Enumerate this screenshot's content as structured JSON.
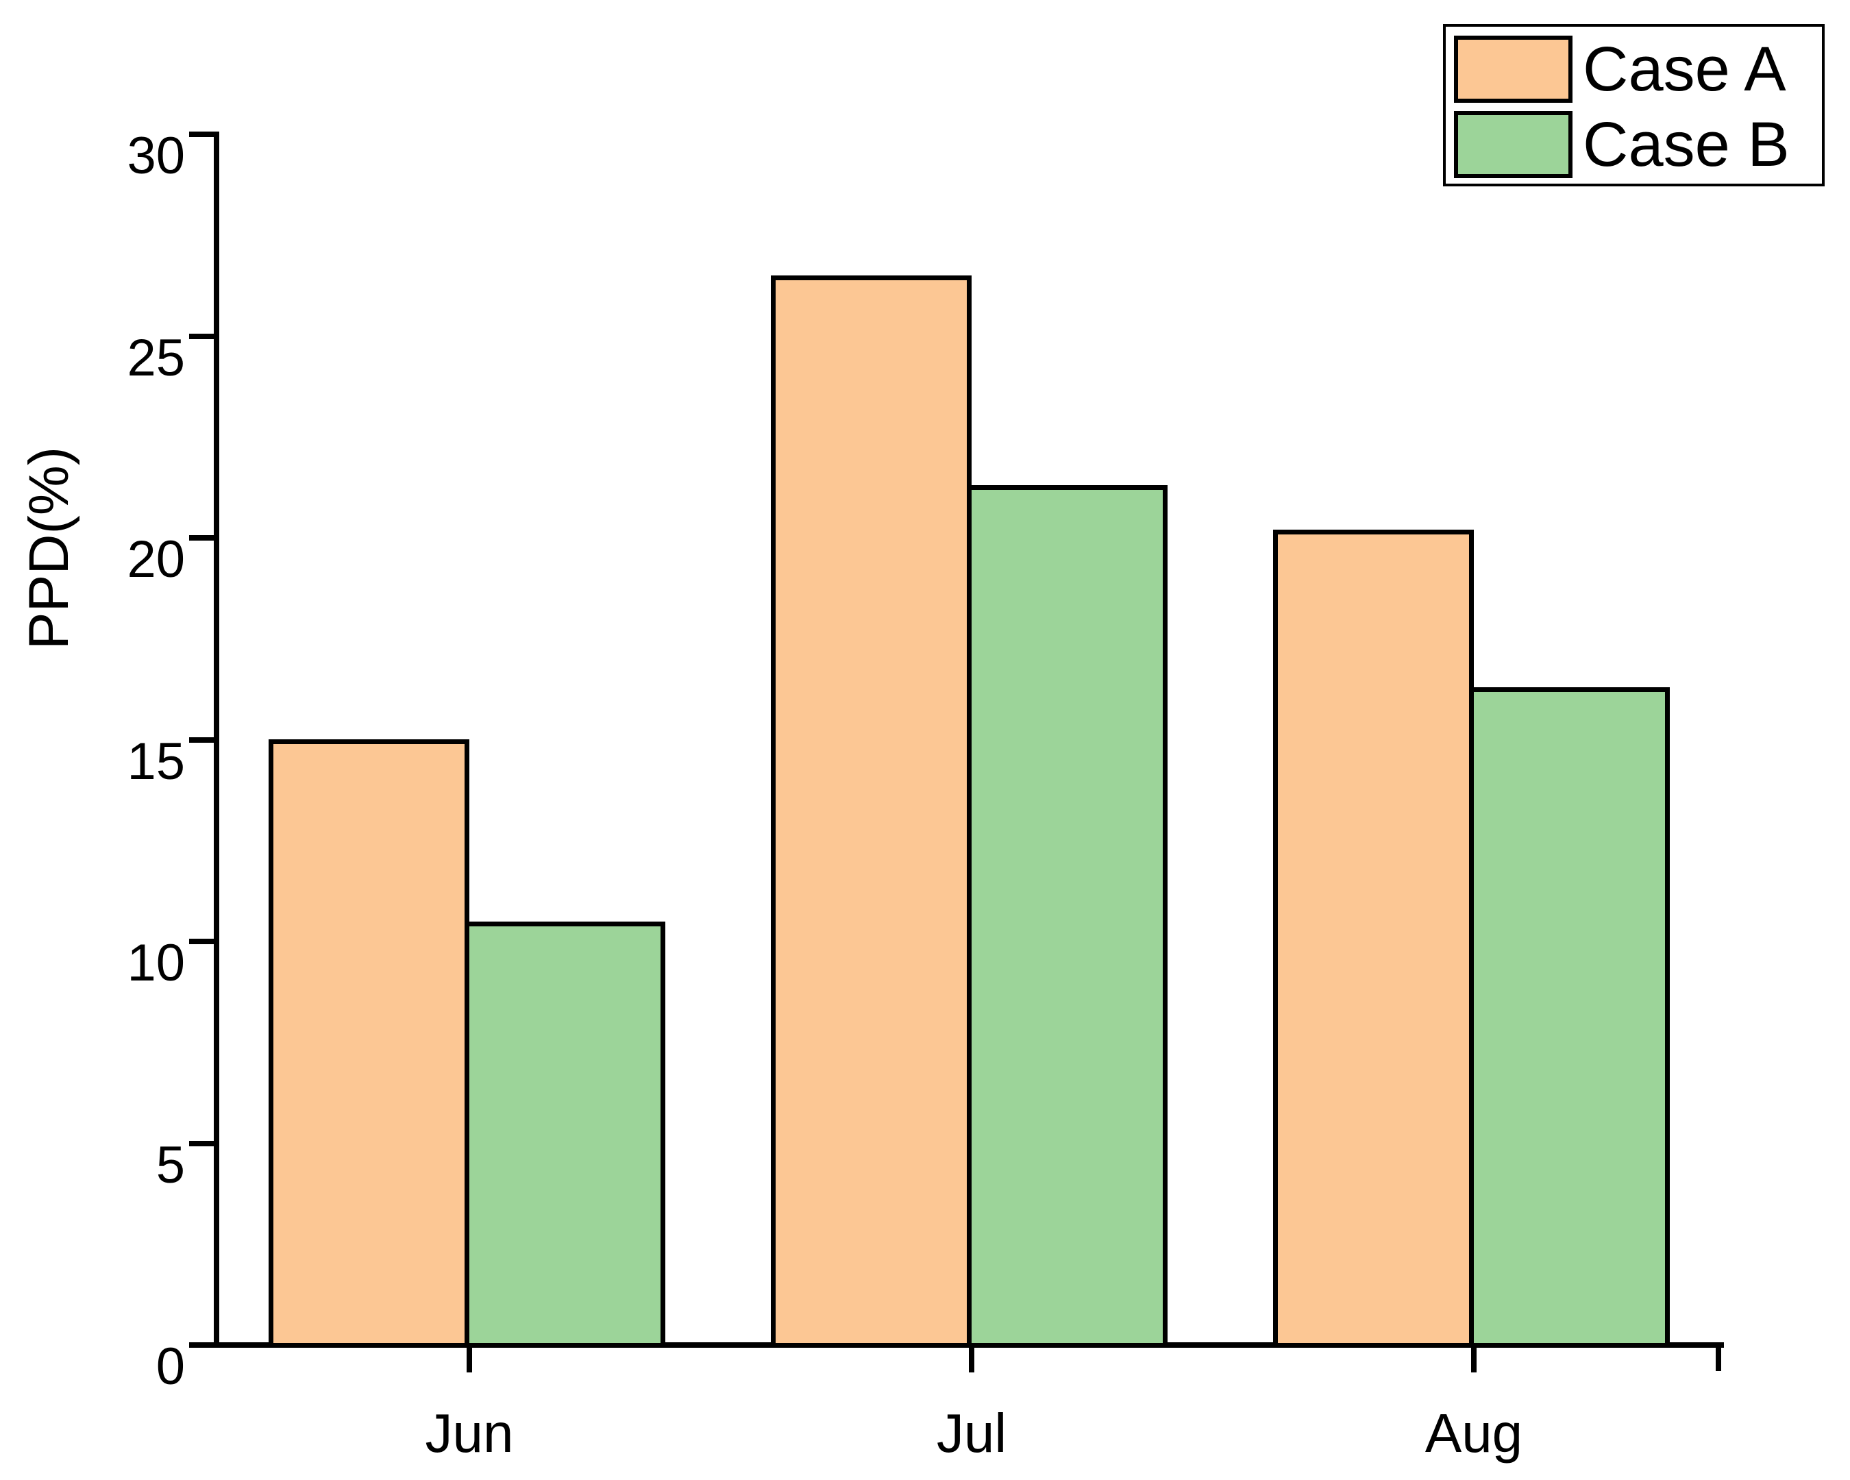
{
  "chart_data": {
    "type": "bar",
    "title": "",
    "xlabel": "",
    "ylabel": "PPD(%)",
    "categories": [
      "Jun",
      "Jul",
      "Aug"
    ],
    "series": [
      {
        "name": "Case A",
        "color": "#FCC794",
        "values": [
          15.0,
          26.5,
          20.2
        ]
      },
      {
        "name": "Case B",
        "color": "#9CD499",
        "values": [
          10.5,
          21.3,
          16.3
        ]
      }
    ],
    "ylim": [
      0,
      30
    ],
    "yticks": [
      0,
      5,
      10,
      15,
      20,
      25,
      30
    ],
    "grid": false,
    "legend_position": "top-right",
    "bar_edge_color": "#000000",
    "axis_color": "#000000",
    "background_color": "#FFFFFF"
  }
}
